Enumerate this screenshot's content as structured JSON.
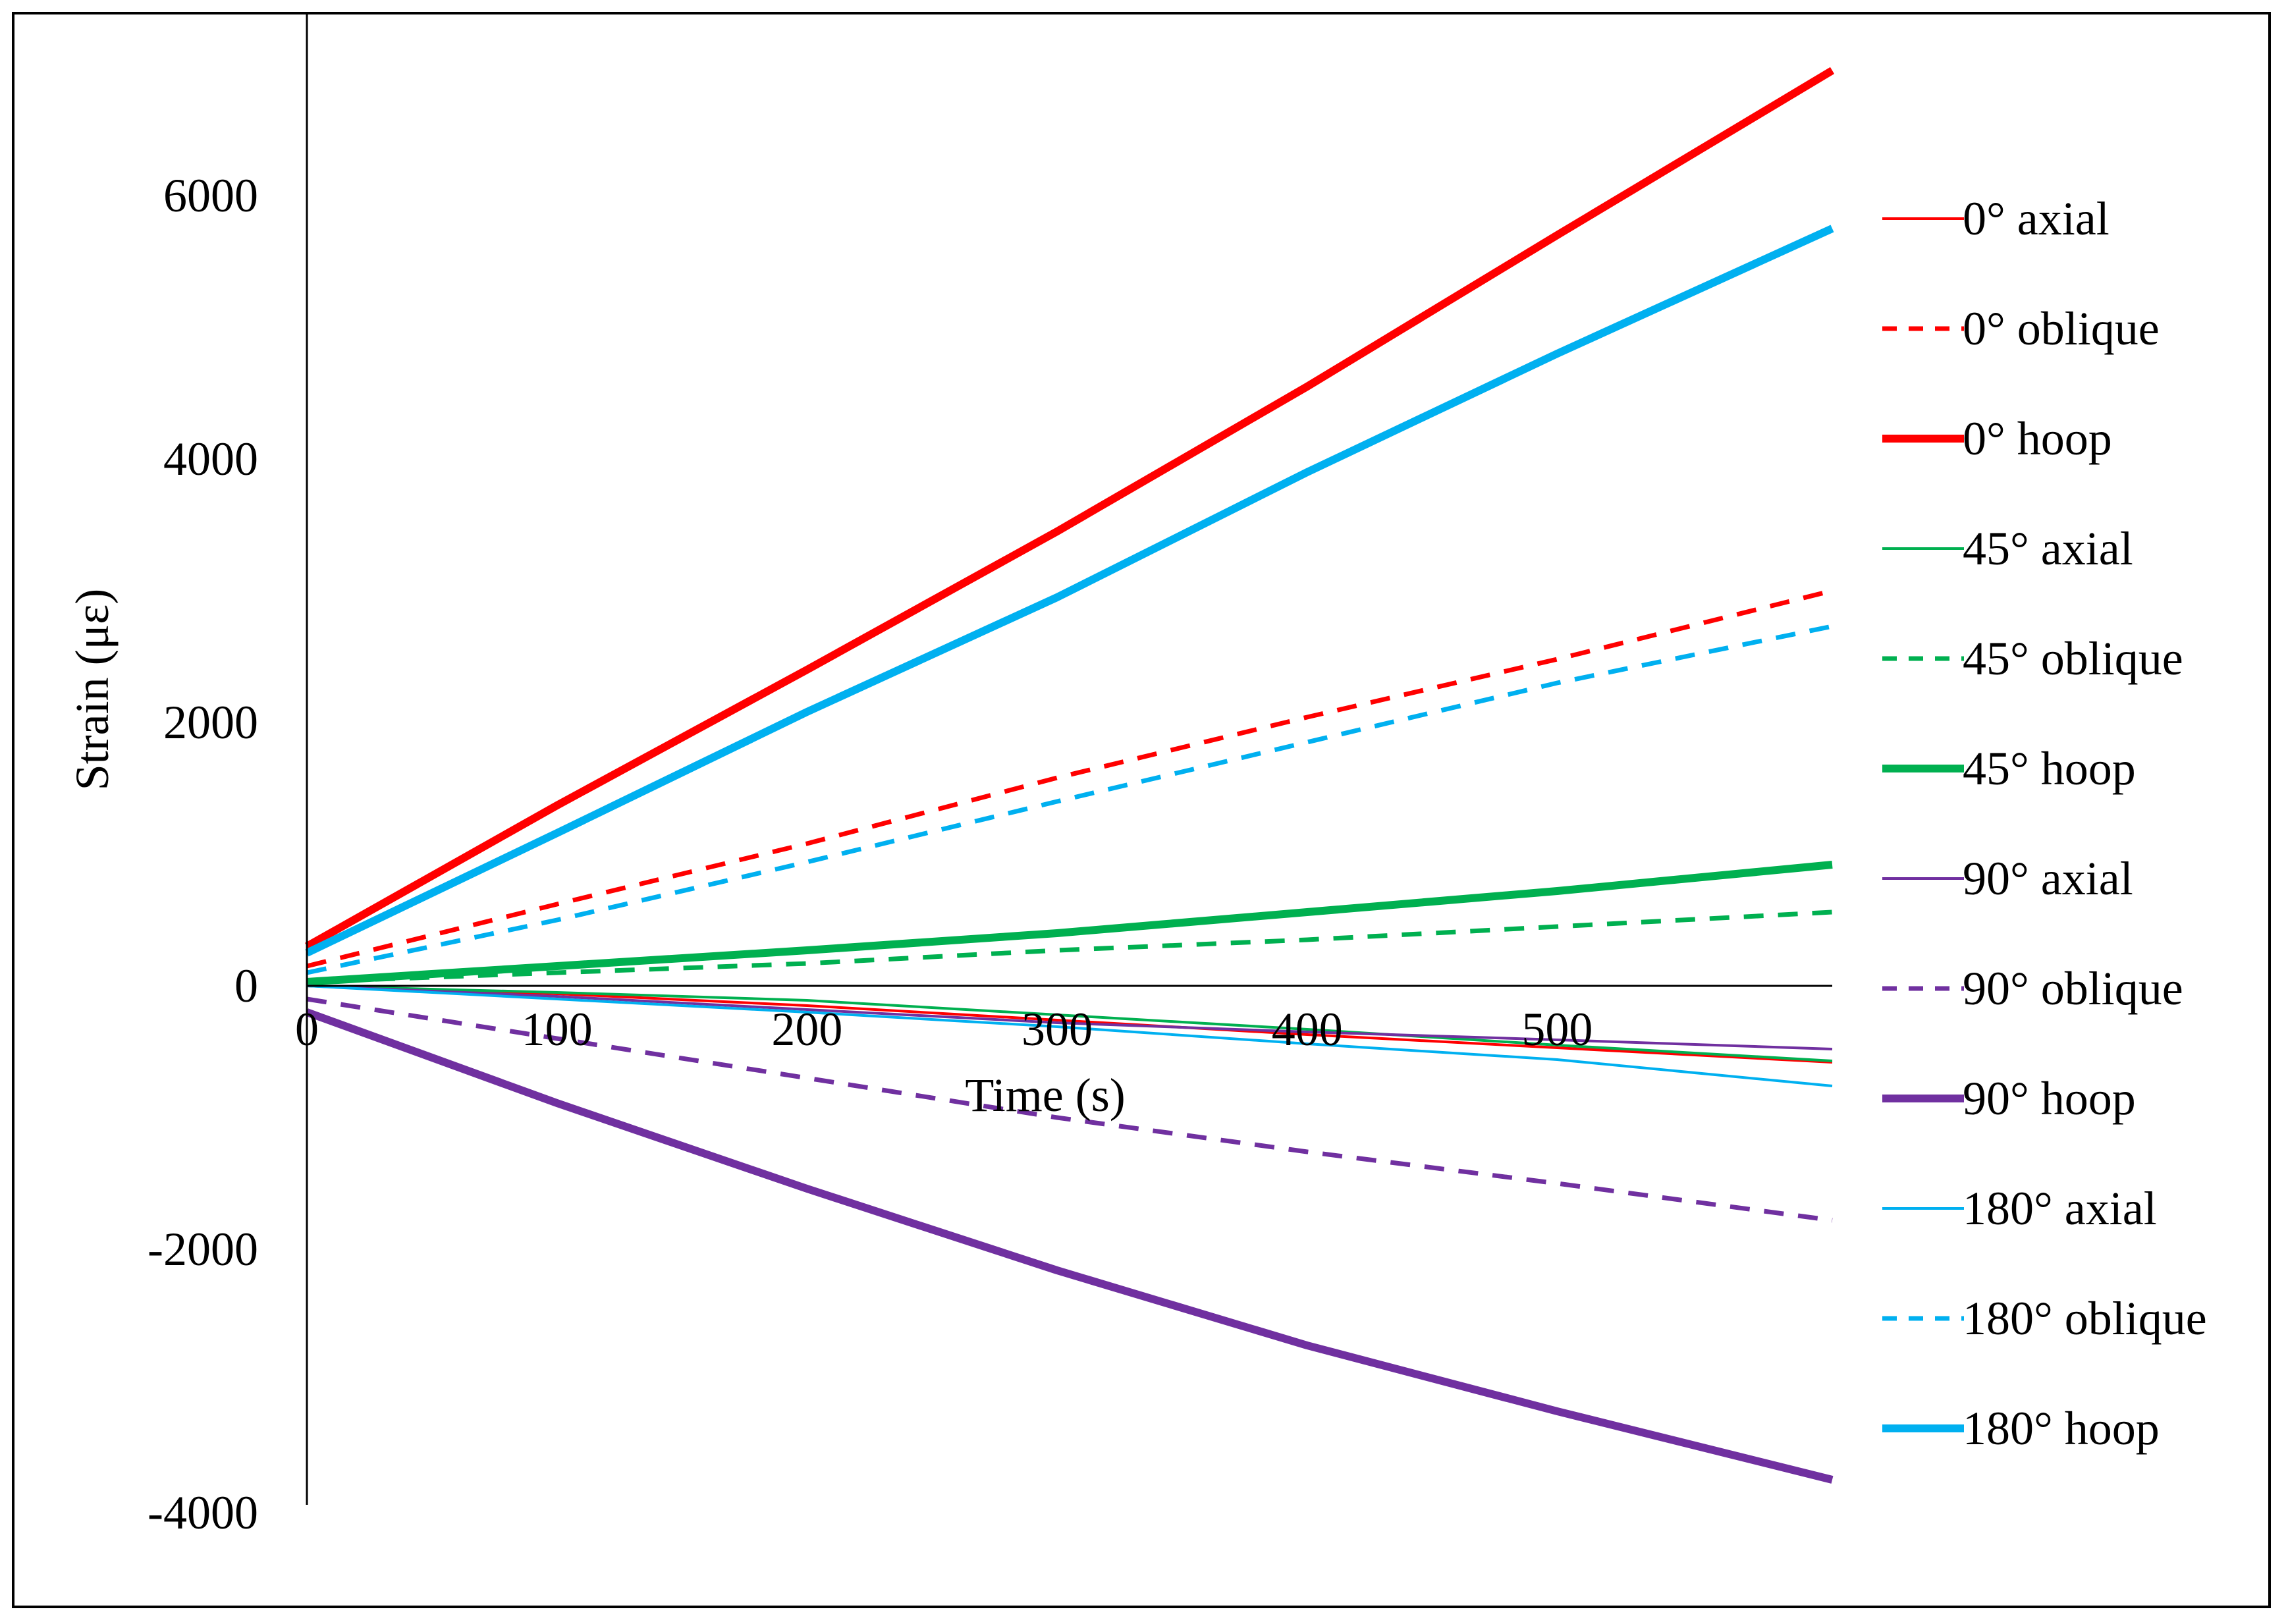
{
  "chart_data": {
    "type": "line",
    "title": "",
    "xlabel": "Time (s)",
    "ylabel": "Strain (με)",
    "xlim": [
      0,
      610
    ],
    "ylim": [
      -4000,
      7000
    ],
    "x_ticks": [
      0,
      100,
      200,
      300,
      400,
      500
    ],
    "y_ticks": [
      6000,
      4000,
      2000,
      0,
      -2000,
      -4000
    ],
    "grid": false,
    "legend_position": "right",
    "series": [
      {
        "name": "0° axial",
        "color": "#ff0000",
        "style": "thin",
        "x": [
          0,
          100,
          200,
          300,
          400,
          500,
          610
        ],
        "y": [
          0,
          -60,
          -150,
          -260,
          -370,
          -470,
          -580
        ]
      },
      {
        "name": "0° oblique",
        "color": "#ff0000",
        "style": "dashed",
        "x": [
          0,
          100,
          200,
          300,
          400,
          500,
          610
        ],
        "y": [
          150,
          620,
          1080,
          1580,
          2040,
          2480,
          3000
        ]
      },
      {
        "name": "0° hoop",
        "color": "#ff0000",
        "style": "thick",
        "x": [
          0,
          100,
          200,
          300,
          400,
          500,
          610
        ],
        "y": [
          300,
          1370,
          2400,
          3450,
          4550,
          5700,
          6950
        ]
      },
      {
        "name": "45° axial",
        "color": "#00b050",
        "style": "thin",
        "x": [
          0,
          100,
          200,
          300,
          400,
          500,
          610
        ],
        "y": [
          0,
          -50,
          -110,
          -220,
          -330,
          -450,
          -570
        ]
      },
      {
        "name": "45° oblique",
        "color": "#00b050",
        "style": "dashed",
        "x": [
          0,
          100,
          200,
          300,
          400,
          500,
          610
        ],
        "y": [
          30,
          100,
          170,
          270,
          350,
          450,
          560
        ]
      },
      {
        "name": "45° hoop",
        "color": "#00b050",
        "style": "thick",
        "x": [
          0,
          100,
          200,
          300,
          400,
          500,
          610
        ],
        "y": [
          30,
          150,
          270,
          400,
          560,
          720,
          920
        ]
      },
      {
        "name": "90° axial",
        "color": "#7030a0",
        "style": "thin",
        "x": [
          0,
          100,
          200,
          300,
          400,
          500,
          610
        ],
        "y": [
          0,
          -80,
          -180,
          -280,
          -350,
          -410,
          -480
        ]
      },
      {
        "name": "90° oblique",
        "color": "#7030a0",
        "style": "dashed",
        "x": [
          0,
          100,
          200,
          300,
          400,
          500,
          610
        ],
        "y": [
          -100,
          -400,
          -700,
          -1000,
          -1260,
          -1500,
          -1780
        ]
      },
      {
        "name": "90° hoop",
        "color": "#7030a0",
        "style": "thick",
        "x": [
          0,
          100,
          200,
          300,
          400,
          500,
          610
        ],
        "y": [
          -200,
          -890,
          -1540,
          -2160,
          -2730,
          -3230,
          -3750
        ]
      },
      {
        "name": "180° axial",
        "color": "#00b0f0",
        "style": "thin",
        "x": [
          0,
          100,
          200,
          300,
          400,
          500,
          610
        ],
        "y": [
          0,
          -100,
          -200,
          -310,
          -440,
          -560,
          -760
        ]
      },
      {
        "name": "180° oblique",
        "color": "#00b0f0",
        "style": "dashed",
        "x": [
          0,
          100,
          200,
          300,
          400,
          500,
          610
        ],
        "y": [
          100,
          500,
          940,
          1400,
          1850,
          2300,
          2730
        ]
      },
      {
        "name": "180° hoop",
        "color": "#00b0f0",
        "style": "thick",
        "x": [
          0,
          100,
          200,
          300,
          400,
          500,
          610
        ],
        "y": [
          250,
          1160,
          2080,
          2950,
          3900,
          4800,
          5750
        ]
      }
    ]
  }
}
